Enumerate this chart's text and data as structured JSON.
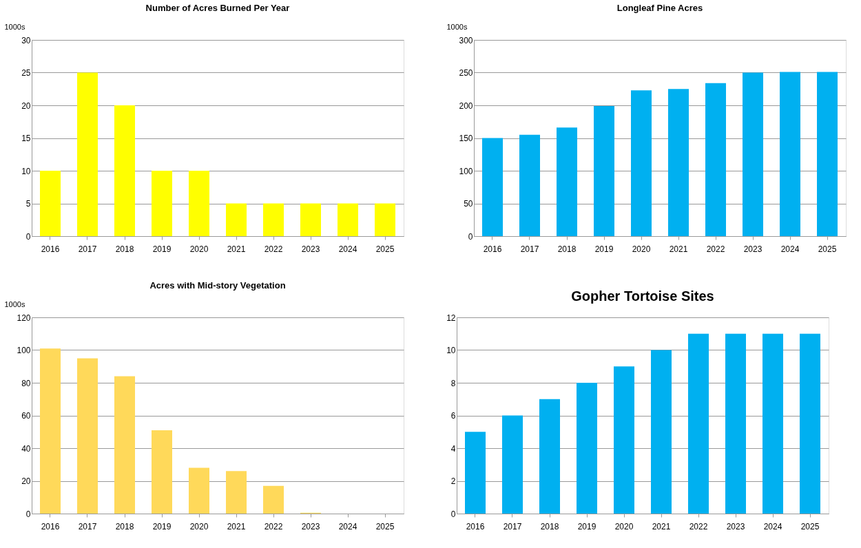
{
  "chart_data": [
    {
      "type": "bar",
      "title": "Number of Acres Burned Per Year",
      "ylabel": "1000s",
      "categories": [
        "2016",
        "2017",
        "2018",
        "2019",
        "2020",
        "2021",
        "2022",
        "2023",
        "2024",
        "2025"
      ],
      "values": [
        10,
        25,
        20,
        10,
        10,
        5,
        5,
        5,
        5,
        5
      ],
      "color": "#ffff00",
      "ylim": [
        0,
        30
      ],
      "yticks": [
        0,
        5,
        10,
        15,
        20,
        25,
        30
      ],
      "grid": "y"
    },
    {
      "type": "bar",
      "title": "Longleaf Pine Acres",
      "ylabel": "1000s",
      "categories": [
        "2016",
        "2017",
        "2018",
        "2019",
        "2020",
        "2021",
        "2022",
        "2023",
        "2024",
        "2025"
      ],
      "values": [
        150,
        155,
        166,
        199,
        223,
        225,
        234,
        250,
        251,
        251
      ],
      "color": "#00b0f0",
      "ylim": [
        0,
        300
      ],
      "yticks": [
        0,
        50,
        100,
        150,
        200,
        250,
        300
      ],
      "grid": "y"
    },
    {
      "type": "bar",
      "title": "Acres with Mid-story Vegetation",
      "ylabel": "1000s",
      "categories": [
        "2016",
        "2017",
        "2018",
        "2019",
        "2020",
        "2021",
        "2022",
        "2023",
        "2024",
        "2025"
      ],
      "values": [
        101,
        95,
        84,
        51,
        28,
        26,
        17,
        0.5,
        0,
        0
      ],
      "color": "#ffd95a",
      "ylim": [
        0,
        120
      ],
      "yticks": [
        0,
        20,
        40,
        60,
        80,
        100,
        120
      ],
      "grid": "y"
    },
    {
      "type": "bar",
      "title": "Gopher Tortoise Sites",
      "categories": [
        "2016",
        "2017",
        "2018",
        "2019",
        "2020",
        "2021",
        "2022",
        "2023",
        "2024",
        "2025"
      ],
      "values": [
        5,
        6,
        7,
        8,
        9,
        10,
        11,
        11,
        11,
        11
      ],
      "color": "#00b0f0",
      "ylim": [
        0,
        12
      ],
      "yticks": [
        0,
        2,
        4,
        6,
        8,
        10,
        12
      ],
      "grid": "y"
    }
  ]
}
